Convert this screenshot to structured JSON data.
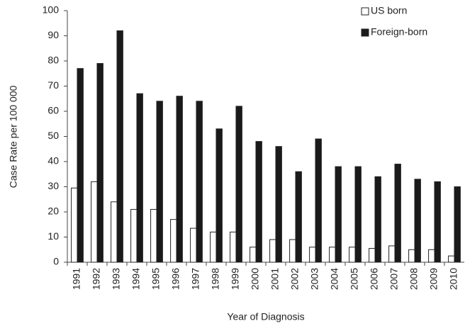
{
  "chart_data": {
    "type": "bar",
    "y_label": "Case Rate per 100 000",
    "x_label": "Year of Diagnosis",
    "categories": [
      "1991",
      "1992",
      "1993",
      "1994",
      "1995",
      "1996",
      "1997",
      "1998",
      "1999",
      "2000",
      "2001",
      "2002",
      "2003",
      "2004",
      "2005",
      "2006",
      "2007",
      "2008",
      "2009",
      "2010"
    ],
    "series": [
      {
        "name": "US born",
        "color": "#ffffff",
        "values": [
          29.5,
          32,
          24,
          21,
          21,
          17,
          13.5,
          12,
          12,
          6,
          9,
          9,
          6,
          6,
          6,
          5.5,
          6.5,
          5,
          5,
          2.5
        ]
      },
      {
        "name": "Foreign-born",
        "color": "#1a1a1a",
        "values": [
          77,
          79,
          92,
          67,
          64,
          66,
          64,
          53,
          62,
          48,
          46,
          36,
          49,
          38,
          38,
          34,
          39,
          33,
          32,
          30
        ]
      }
    ],
    "ylim": [
      0,
      100
    ],
    "yticks": [
      0,
      10,
      20,
      30,
      40,
      50,
      60,
      70,
      80,
      90,
      100
    ],
    "grid": false,
    "legend": "top-right"
  }
}
